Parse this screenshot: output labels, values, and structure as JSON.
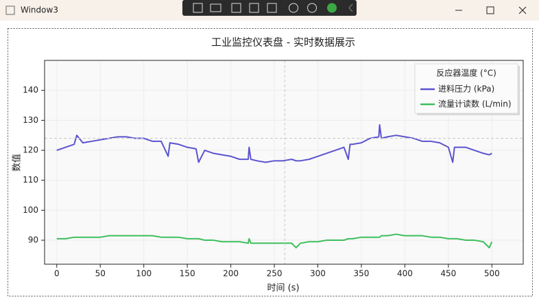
{
  "window": {
    "title": "Window3"
  },
  "chart_data": {
    "type": "line",
    "title": "工业监控仪表盘 - 实时数据展示",
    "x_label": "时间 (s)",
    "y_label": "数值",
    "legend_title": "反应器温度 (°C)",
    "legend": "upper right",
    "grid": true,
    "xlim": [
      -14,
      536
    ],
    "ylim": [
      82,
      150
    ],
    "xticks": [
      0,
      50,
      100,
      150,
      200,
      250,
      300,
      350,
      400,
      450,
      500
    ],
    "yticks": [
      90,
      100,
      110,
      120,
      130,
      140
    ],
    "crosshair": {
      "x": 262,
      "y": 124
    },
    "x": [
      0,
      10,
      20,
      23,
      30,
      40,
      50,
      60,
      70,
      80,
      90,
      100,
      110,
      120,
      128,
      130,
      140,
      150,
      160,
      163,
      170,
      180,
      190,
      200,
      210,
      220,
      221,
      223,
      230,
      240,
      250,
      260,
      270,
      275,
      280,
      290,
      300,
      310,
      320,
      330,
      335,
      337,
      340,
      350,
      360,
      370,
      371,
      373,
      380,
      390,
      400,
      410,
      420,
      430,
      440,
      450,
      455,
      457,
      460,
      470,
      480,
      490,
      497,
      500
    ],
    "series": [
      {
        "name": "进料压力 (kPa)",
        "color": "#5b53cf",
        "values": [
          120,
          121,
          122,
          125,
          122.5,
          123,
          123.5,
          124,
          124.5,
          124.5,
          124,
          124,
          123,
          123,
          118,
          122.5,
          122,
          121,
          120.5,
          116,
          120,
          119,
          118.5,
          118,
          117,
          117,
          121,
          117,
          116.5,
          116,
          116.5,
          116.5,
          117,
          116.5,
          116.5,
          117,
          118,
          119,
          120,
          121,
          117,
          122,
          122,
          122.5,
          124,
          124.5,
          128.5,
          124,
          124.5,
          125,
          124.5,
          124,
          123,
          123,
          122.5,
          121,
          116,
          121,
          121,
          121,
          120,
          119,
          118.5,
          119
        ]
      },
      {
        "name": "流量计读数 (L/min)",
        "color": "#3cbf5c",
        "values": [
          90.5,
          90.5,
          91,
          91,
          91,
          91,
          91,
          91.5,
          91.5,
          91.5,
          91.5,
          91.5,
          91.5,
          91,
          91,
          91,
          91,
          90.5,
          90.5,
          90.5,
          90,
          90,
          89.5,
          89.5,
          89.5,
          89,
          90.5,
          89,
          89,
          89,
          89,
          89,
          89,
          87.5,
          89,
          89.5,
          89.5,
          90,
          90,
          90,
          90.5,
          90.5,
          90.5,
          91,
          91,
          91,
          91,
          91.5,
          91.5,
          92,
          91.5,
          91.5,
          91.5,
          91,
          91,
          90.5,
          90.5,
          90.5,
          90.5,
          90,
          90,
          89.5,
          87.5,
          89.5
        ]
      }
    ]
  }
}
